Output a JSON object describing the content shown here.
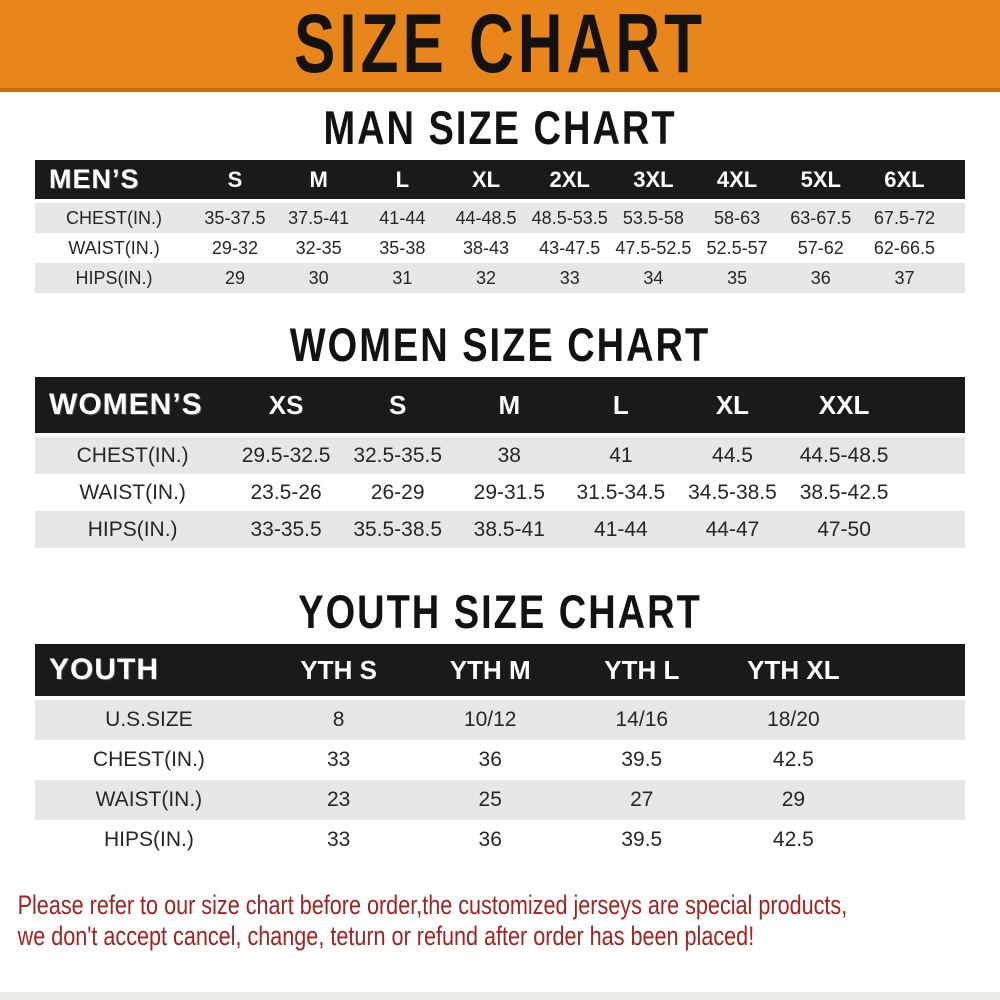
{
  "banner": {
    "title": "SIZE CHART",
    "bg_color": "#E8861C",
    "edge_color": "#C96F12"
  },
  "colors": {
    "table_header_bg": "#1B191A",
    "row_stripe": "#E8E7E5",
    "footer_text": "#A3231F"
  },
  "sections": [
    {
      "heading": "MAN SIZE CHART",
      "table": {
        "label": "MEN’S",
        "columns": [
          "S",
          "M",
          "L",
          "XL",
          "2XL",
          "3XL",
          "4XL",
          "5XL",
          "6XL"
        ],
        "rows": [
          {
            "label": "CHEST(IN.)",
            "values": [
              "35-37.5",
              "37.5-41",
              "41-44",
              "44-48.5",
              "48.5-53.5",
              "53.5-58",
              "58-63",
              "63-67.5",
              "67.5-72"
            ]
          },
          {
            "label": "WAIST(IN.)",
            "values": [
              "29-32",
              "32-35",
              "35-38",
              "38-43",
              "43-47.5",
              "47.5-52.5",
              "52.5-57",
              "57-62",
              "62-66.5"
            ]
          },
          {
            "label": "HIPS(IN.)",
            "values": [
              "29",
              "30",
              "31",
              "32",
              "33",
              "34",
              "35",
              "36",
              "37"
            ]
          }
        ]
      }
    },
    {
      "heading": "WOMEN SIZE CHART",
      "table": {
        "label": "WOMEN’S",
        "columns": [
          "XS",
          "S",
          "M",
          "L",
          "XL",
          "XXL"
        ],
        "rows": [
          {
            "label": "CHEST(IN.)",
            "values": [
              "29.5-32.5",
              "32.5-35.5",
              "38",
              "41",
              "44.5",
              "44.5-48.5"
            ]
          },
          {
            "label": "WAIST(IN.)",
            "values": [
              "23.5-26",
              "26-29",
              "29-31.5",
              "31.5-34.5",
              "34.5-38.5",
              "38.5-42.5"
            ]
          },
          {
            "label": "HIPS(IN.)",
            "values": [
              "33-35.5",
              "35.5-38.5",
              "38.5-41",
              "41-44",
              "44-47",
              "47-50"
            ]
          }
        ]
      }
    },
    {
      "heading": "YOUTH SIZE CHART",
      "table": {
        "label": "YOUTH",
        "columns": [
          "YTH S",
          "YTH M",
          "YTH L",
          "YTH XL"
        ],
        "rows": [
          {
            "label": "U.S.SIZE",
            "values": [
              "8",
              "10/12",
              "14/16",
              "18/20"
            ]
          },
          {
            "label": "CHEST(IN.)",
            "values": [
              "33",
              "36",
              "39.5",
              "42.5"
            ]
          },
          {
            "label": "WAIST(IN.)",
            "values": [
              "23",
              "25",
              "27",
              "29"
            ]
          },
          {
            "label": "HIPS(IN.)",
            "values": [
              "33",
              "36",
              "39.5",
              "42.5"
            ]
          }
        ]
      }
    }
  ],
  "footer": {
    "line1": "Please refer to our size chart before order,the customized jerseys are special products,",
    "line2": "we don't accept cancel, change, teturn or refund after order has been placed!"
  }
}
